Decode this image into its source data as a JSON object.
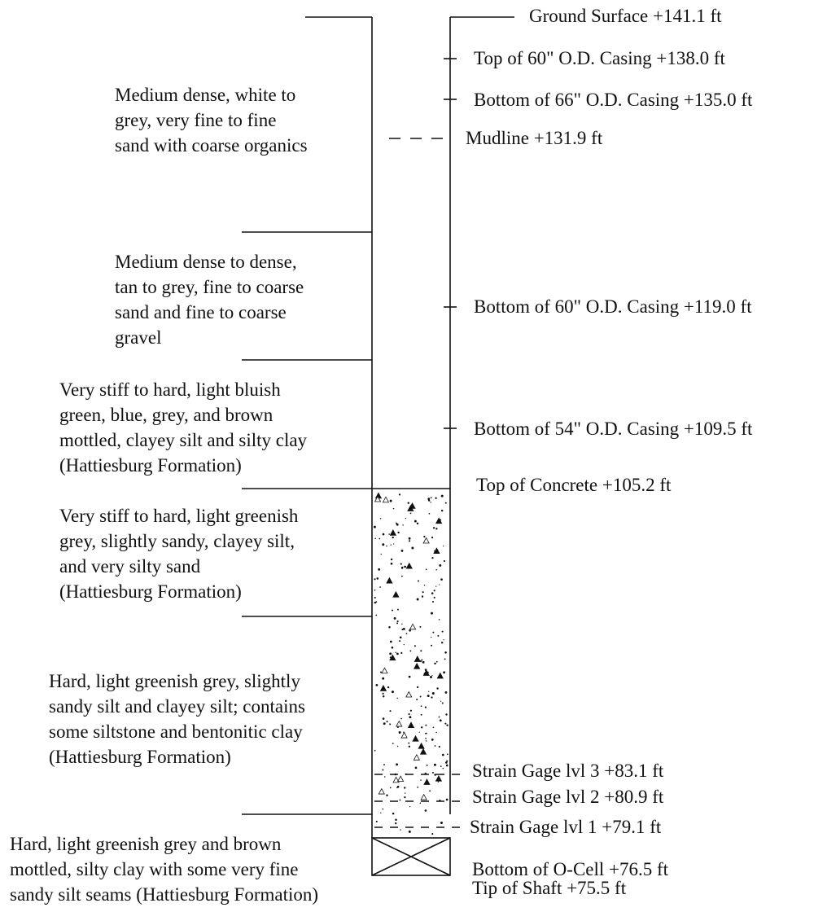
{
  "soil_layers": [
    {
      "lines": [
        "Medium dense, white to",
        "grey, very fine to fine",
        "sand with coarse organics"
      ]
    },
    {
      "lines": [
        "Medium dense to dense,",
        "tan to grey, fine to coarse",
        "sand and fine to coarse",
        "gravel"
      ]
    },
    {
      "lines": [
        "Very stiff to hard, light bluish",
        "green, blue, grey, and brown",
        "mottled, clayey silt and silty clay",
        "(Hattiesburg Formation)"
      ]
    },
    {
      "lines": [
        "Very stiff to hard, light greenish",
        "grey, slightly sandy, clayey silt,",
        "and very silty sand",
        "(Hattiesburg Formation)"
      ]
    },
    {
      "lines": [
        "Hard, light greenish grey, slightly",
        "sandy silt and clayey silt; contains",
        "some siltstone and bentonitic clay",
        "(Hattiesburg Formation)"
      ]
    },
    {
      "lines": [
        "Hard, light greenish grey and brown",
        "mottled, silty clay with some very fine",
        "sandy silt seams (Hattiesburg Formation)"
      ]
    }
  ],
  "elevations": [
    {
      "label": "Ground Surface  +141.1 ft"
    },
    {
      "label": "Top of 60\" O.D. Casing  +138.0 ft"
    },
    {
      "label": "Bottom of 66\" O.D. Casing  +135.0 ft"
    },
    {
      "label": "Mudline +131.9 ft"
    },
    {
      "label": "Bottom of 60\" O.D. Casing  +119.0 ft"
    },
    {
      "label": "Bottom of 54\" O.D. Casing  +109.5 ft"
    },
    {
      "label": "Top of Concrete  +105.2 ft"
    },
    {
      "label": "Strain Gage lvl 3  +83.1 ft"
    },
    {
      "label": "Strain Gage lvl 2  +80.9 ft"
    },
    {
      "label": "Strain Gage lvl 1  +79.1 ft"
    },
    {
      "label": "Bottom of O-Cell  +76.5 ft"
    },
    {
      "label": "Tip of Shaft  +75.5 ft"
    }
  ],
  "colors": {
    "line": "#111111",
    "fill": "#ffffff"
  }
}
